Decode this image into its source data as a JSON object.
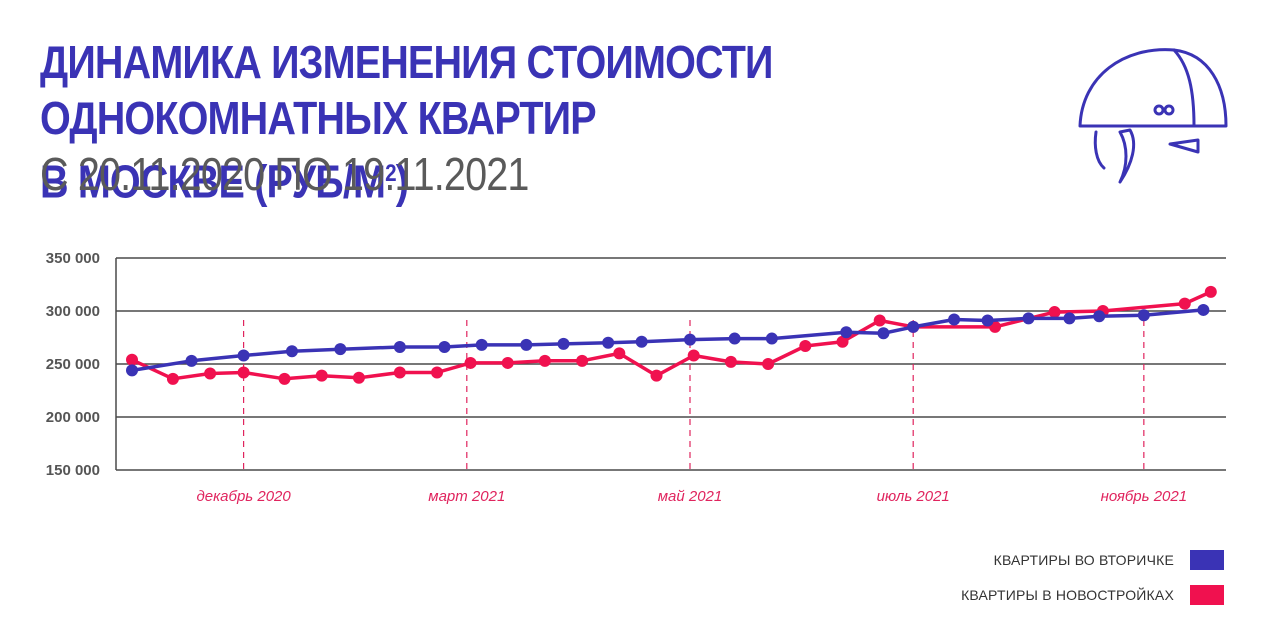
{
  "header": {
    "title_line1": "ДИНАМИКА ИЗМЕНЕНИЯ СТОИМОСТИ ОДНОКОМНАТНЫХ КВАРТИР",
    "title_line2": "В МОСКВЕ (РУБ/М",
    "title_sup": "2",
    "title_close": ")",
    "subtitle": "С 20.11.2020 ПО 19.11.2021"
  },
  "logo": {
    "icon": "hard-hat-icon",
    "color": "#3a33b5"
  },
  "colors": {
    "secondary": "#3a33b5",
    "new": "#f0114f",
    "grid": "#4a4a4a",
    "month": "#e0245e"
  },
  "chart_data": {
    "type": "line",
    "y_tick_labels": [
      "350 000",
      "300 000",
      "250 000",
      "200 000",
      "150 000"
    ],
    "y_ticks": [
      350000,
      300000,
      250000,
      200000,
      150000
    ],
    "ylim": [
      150000,
      350000
    ],
    "x_labels": [
      {
        "label": "декабрь 2020",
        "index": 3
      },
      {
        "label": "март 2021",
        "index": 9
      },
      {
        "label": "май 2021",
        "index": 15
      },
      {
        "label": "июль 2021",
        "index": 21
      },
      {
        "label": "ноябрь 2021",
        "index": 27.2
      }
    ],
    "series": [
      {
        "name": "КВАРТИРЫ ВО ВТОРИЧКЕ",
        "color": "#3a33b5",
        "x": [
          0,
          1.6,
          3,
          4.3,
          5.6,
          7.2,
          8.4,
          9.4,
          10.6,
          11.6,
          12.8,
          13.7,
          15,
          16.2,
          17.2,
          19.2,
          20.2,
          21,
          22.1,
          23,
          24.1,
          25.2,
          26,
          27.2,
          28.8
        ],
        "values": [
          244000,
          253000,
          258000,
          262000,
          264000,
          266000,
          266000,
          268000,
          268000,
          269000,
          270000,
          271000,
          273000,
          274000,
          274000,
          280000,
          279000,
          285000,
          292000,
          291000,
          293000,
          293000,
          295000,
          296000,
          301000
        ]
      },
      {
        "name": "КВАРТИРЫ В НОВОСТРОЙКАХ",
        "color": "#f0114f",
        "x": [
          0,
          1.1,
          2.1,
          3,
          4.1,
          5.1,
          6.1,
          7.2,
          8.2,
          9.1,
          10.1,
          11.1,
          12.1,
          13.1,
          14.1,
          15.1,
          16.1,
          17.1,
          18.1,
          19.1,
          20.1,
          21,
          23.2,
          24.8,
          26.1,
          28.3,
          29
        ],
        "values": [
          254000,
          236000,
          241000,
          242000,
          236000,
          239000,
          237000,
          242000,
          242000,
          251000,
          251000,
          253000,
          253000,
          260000,
          239000,
          258000,
          252000,
          250000,
          267000,
          271000,
          291000,
          285000,
          285000,
          299000,
          300000,
          307000,
          318000
        ]
      }
    ]
  },
  "legend": [
    {
      "label": "КВАРТИРЫ ВО ВТОРИЧКЕ",
      "color": "#3a33b5"
    },
    {
      "label": "КВАРТИРЫ В НОВОСТРОЙКАХ",
      "color": "#f0114f"
    }
  ]
}
